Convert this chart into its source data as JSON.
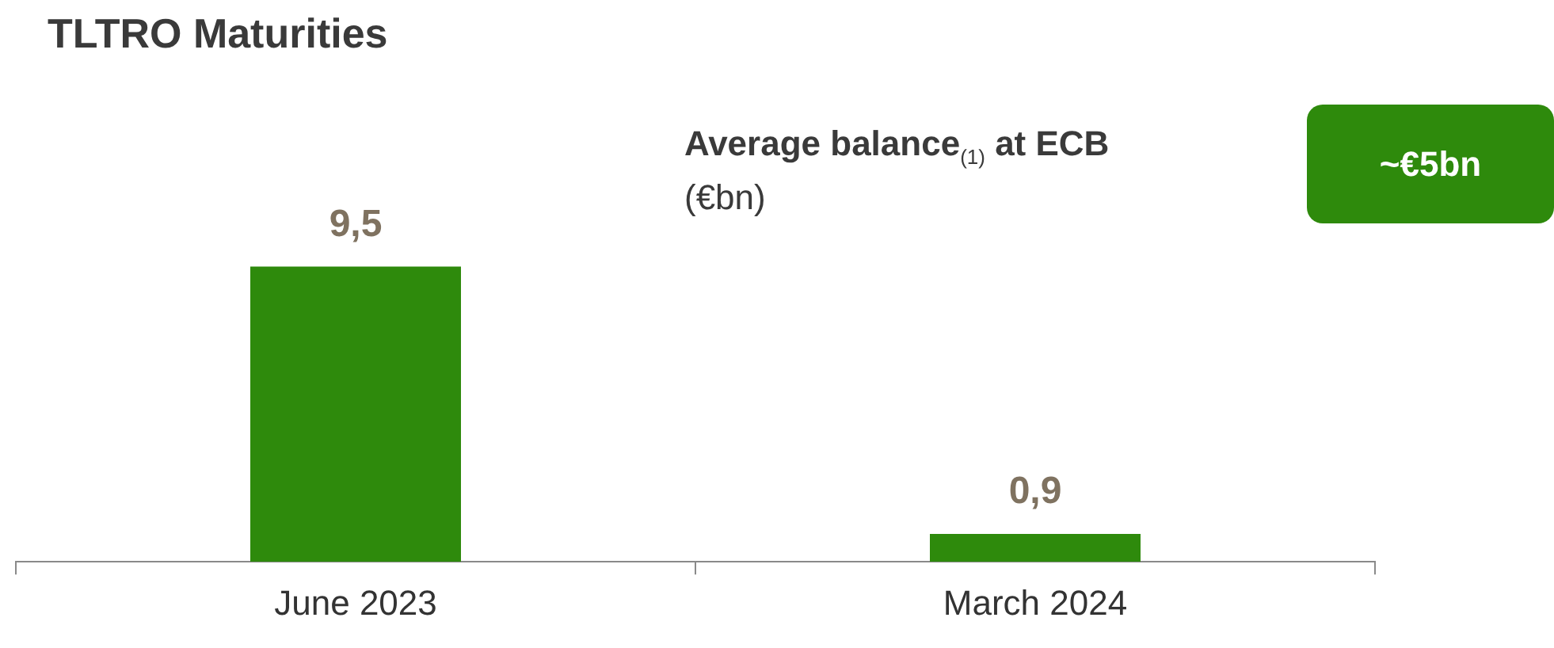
{
  "chart_data": {
    "type": "bar",
    "title": "TLTRO Maturities",
    "categories": [
      "June 2023",
      "March 2024"
    ],
    "values": [
      9.5,
      0.9
    ],
    "value_labels": [
      "9,5",
      "0,9"
    ],
    "color": "#2e8a0c",
    "annotations": [
      "Average balance$_{(1)}$ at ECB",
      "(€bn)",
      "~€5bn"
    ]
  }
}
